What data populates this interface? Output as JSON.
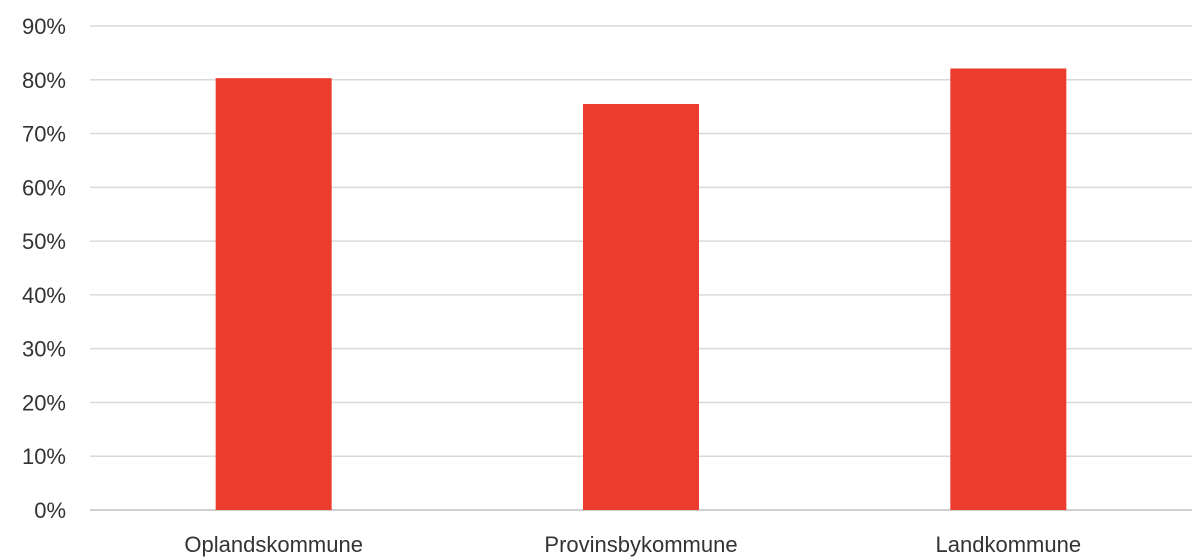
{
  "chart_data": {
    "type": "bar",
    "categories": [
      "Oplandskommune",
      "Provinsbykommune",
      "Landkommune"
    ],
    "series": [
      {
        "values": [
          80.3,
          75.5,
          82.1
        ],
        "color": "#EC3C2E"
      }
    ],
    "y_tick_labels": [
      "0%",
      "10%",
      "20%",
      "30%",
      "40%",
      "50%",
      "60%",
      "70%",
      "80%",
      "90%"
    ],
    "ylim": [
      0,
      90
    ],
    "y_unit": "%",
    "grid": true,
    "gridline_color": "#d9d9d9",
    "legend": "none",
    "title": "",
    "xlabel": "",
    "ylabel": ""
  }
}
